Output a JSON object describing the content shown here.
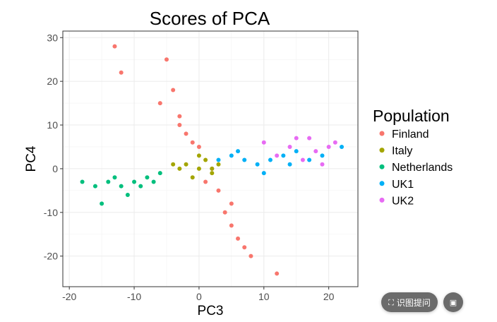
{
  "chart_data": {
    "type": "scatter",
    "title": "Scores of PCA",
    "xlabel": "PC3",
    "ylabel": "PC4",
    "xlim": [
      -21,
      24.5
    ],
    "ylim": [
      -27,
      31.5
    ],
    "xticks": [
      -20,
      -10,
      0,
      10,
      20
    ],
    "yticks": [
      -20,
      -10,
      0,
      10,
      20,
      30
    ],
    "xtick_labels": [
      "-20",
      "-10",
      "0",
      "10",
      "20"
    ],
    "ytick_labels": [
      "-20",
      "-10",
      "0",
      "10",
      "20",
      "30"
    ],
    "grid": true,
    "legend_title": "Population",
    "legend_position": "right",
    "series": [
      {
        "name": "Finland",
        "color": "#F8766D",
        "points": [
          [
            -5,
            25
          ],
          [
            -4,
            18
          ],
          [
            -3,
            12
          ],
          [
            -2,
            8
          ],
          [
            -6,
            15
          ],
          [
            -3,
            10
          ],
          [
            0,
            5
          ],
          [
            2,
            0
          ],
          [
            3,
            -5
          ],
          [
            4,
            -10
          ],
          [
            5,
            -13
          ],
          [
            6,
            -16
          ],
          [
            7,
            -18
          ],
          [
            8,
            -20
          ],
          [
            -13,
            28
          ],
          [
            -12,
            22
          ],
          [
            12,
            -24
          ],
          [
            -1,
            6
          ],
          [
            1,
            -3
          ],
          [
            5,
            -8
          ]
        ]
      },
      {
        "name": "Italy",
        "color": "#A3A500",
        "points": [
          [
            -2,
            1
          ],
          [
            0,
            0
          ],
          [
            2,
            0
          ],
          [
            -3,
            0
          ],
          [
            1,
            2
          ],
          [
            -1,
            -2
          ],
          [
            3,
            1
          ],
          [
            -4,
            1
          ],
          [
            2,
            -1
          ],
          [
            0,
            3
          ]
        ]
      },
      {
        "name": "Netherlands",
        "color": "#00BF7D",
        "points": [
          [
            -18,
            -3
          ],
          [
            -16,
            -4
          ],
          [
            -14,
            -3
          ],
          [
            -12,
            -4
          ],
          [
            -10,
            -3
          ],
          [
            -8,
            -2
          ],
          [
            -6,
            -1
          ],
          [
            -15,
            -8
          ],
          [
            -11,
            -6
          ],
          [
            -9,
            -4
          ],
          [
            -13,
            -2
          ],
          [
            -7,
            -3
          ]
        ]
      },
      {
        "name": "UK1",
        "color": "#00B0F6",
        "points": [
          [
            3,
            2
          ],
          [
            5,
            3
          ],
          [
            7,
            2
          ],
          [
            9,
            1
          ],
          [
            11,
            2
          ],
          [
            13,
            3
          ],
          [
            15,
            4
          ],
          [
            17,
            2
          ],
          [
            19,
            3
          ],
          [
            22,
            5
          ],
          [
            6,
            4
          ],
          [
            10,
            -1
          ],
          [
            14,
            1
          ]
        ]
      },
      {
        "name": "UK2",
        "color": "#E76BF3",
        "points": [
          [
            10,
            6
          ],
          [
            14,
            5
          ],
          [
            17,
            7
          ],
          [
            20,
            5
          ],
          [
            21,
            6
          ],
          [
            16,
            2
          ],
          [
            18,
            4
          ],
          [
            12,
            3
          ],
          [
            19,
            1
          ],
          [
            15,
            7
          ]
        ]
      }
    ]
  },
  "overlay": {
    "scan_label": "识图提问",
    "scan_icon": "scan-frame-icon",
    "image_icon": "image-edit-icon"
  }
}
